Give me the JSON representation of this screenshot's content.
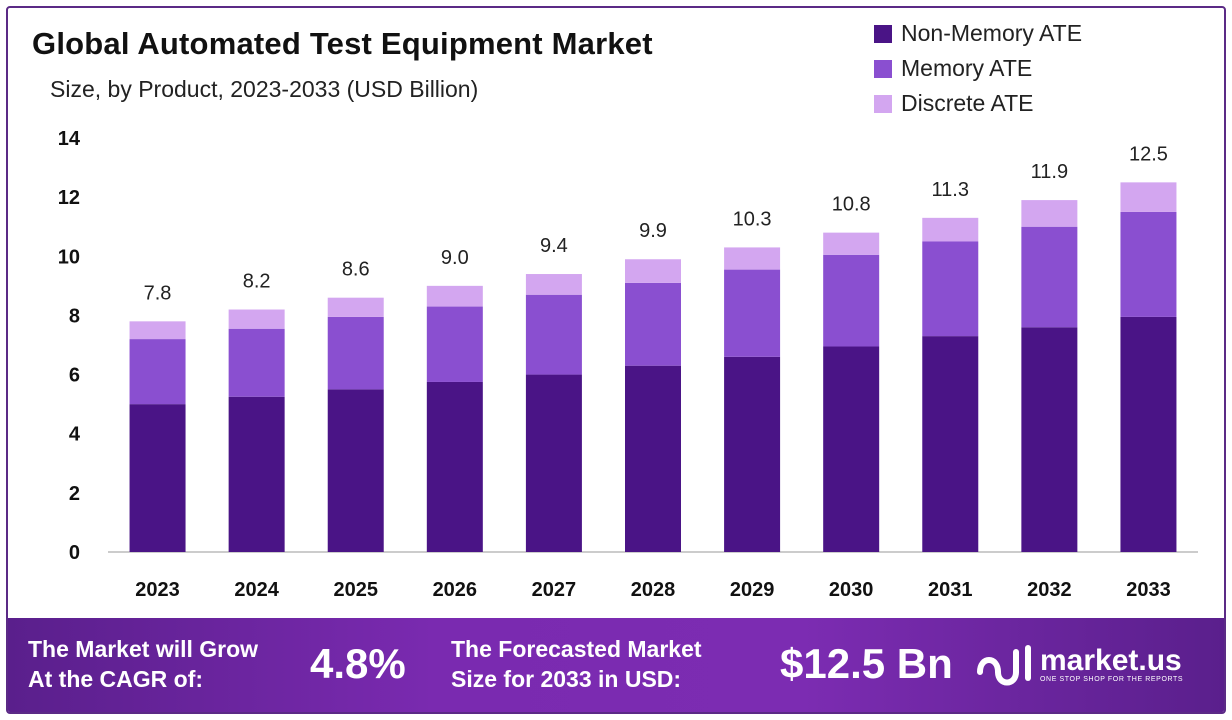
{
  "chart_data": {
    "type": "bar",
    "stacked": true,
    "title": "Global Automated Test Equipment Market",
    "subtitle": "Size, by Product, 2023-2033 (USD Billion)",
    "categories": [
      "2023",
      "2024",
      "2025",
      "2026",
      "2027",
      "2028",
      "2029",
      "2030",
      "2031",
      "2032",
      "2033"
    ],
    "series": [
      {
        "name": "Non-Memory ATE",
        "color": "#4a1486",
        "values": [
          5.0,
          5.25,
          5.5,
          5.75,
          6.0,
          6.3,
          6.6,
          6.95,
          7.3,
          7.6,
          7.95
        ]
      },
      {
        "name": "Memory ATE",
        "color": "#8a4fd0",
        "values": [
          2.2,
          2.3,
          2.45,
          2.55,
          2.7,
          2.8,
          2.95,
          3.1,
          3.2,
          3.4,
          3.55
        ]
      },
      {
        "name": "Discrete ATE",
        "color": "#d3a6f0",
        "values": [
          0.6,
          0.65,
          0.65,
          0.7,
          0.7,
          0.8,
          0.75,
          0.75,
          0.8,
          0.9,
          1.0
        ]
      }
    ],
    "totals": [
      "7.8",
      "8.2",
      "8.6",
      "9.0",
      "9.4",
      "9.9",
      "10.3",
      "10.8",
      "11.3",
      "11.9",
      "12.5"
    ],
    "y_ticks": [
      "0",
      "2",
      "4",
      "6",
      "8",
      "10",
      "12",
      "14"
    ],
    "ylim": [
      0,
      14
    ],
    "grid": false,
    "legend": "top-right"
  },
  "banner": {
    "cagr_label_line1": "The Market will Grow",
    "cagr_label_line2": "At the CAGR of:",
    "cagr_value": "4.8%",
    "forecast_label_line1": "The Forecasted Market",
    "forecast_label_line2": "Size for 2033 in USD:",
    "forecast_value": "$12.5 Bn",
    "logo_name": "market.us",
    "logo_tagline": "ONE STOP SHOP FOR THE REPORTS"
  }
}
